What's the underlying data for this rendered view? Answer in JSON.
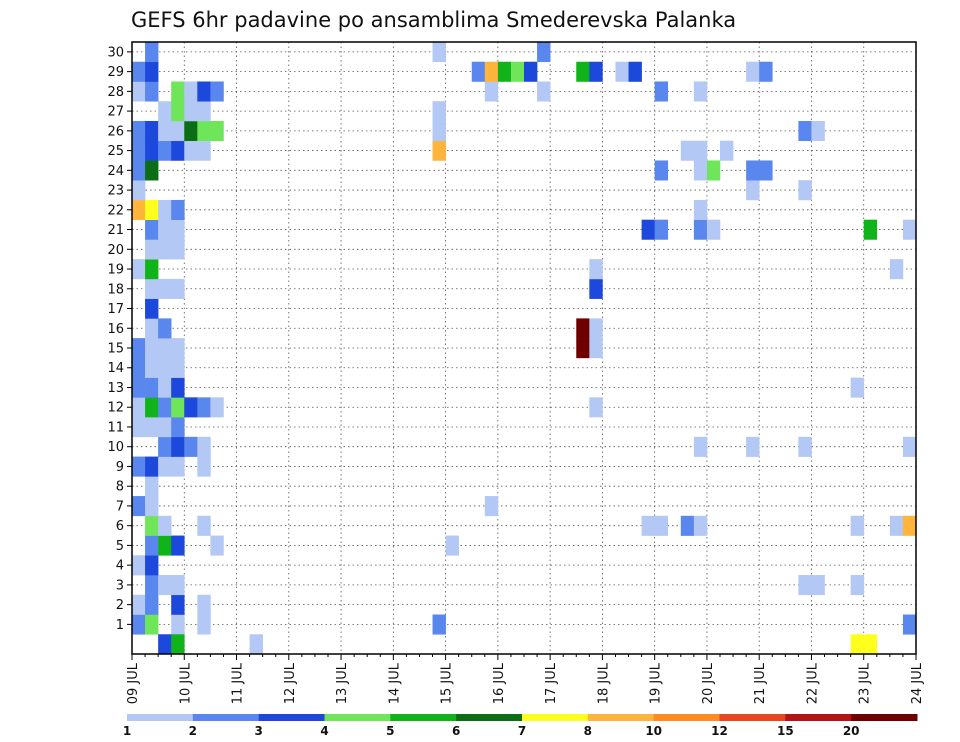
{
  "chart_data": {
    "type": "heatmap",
    "title": "GEFS 6hr padavine po ansamblima Smederevska Palanka",
    "xlabel": "",
    "ylabel": "",
    "x_start": "09 JUL",
    "x_ticks": [
      "09 JUL",
      "10 JUL",
      "11 JUL",
      "12 JUL",
      "13 JUL",
      "14 JUL",
      "15 JUL",
      "16 JUL",
      "17 JUL",
      "18 JUL",
      "19 JUL",
      "20 JUL",
      "21 JUL",
      "22 JUL",
      "23 JUL",
      "24 JUL"
    ],
    "y_ticks": [
      "1",
      "2",
      "3",
      "4",
      "5",
      "6",
      "7",
      "8",
      "9",
      "10",
      "11",
      "12",
      "13",
      "14",
      "15",
      "16",
      "17",
      "18",
      "19",
      "20",
      "21",
      "22",
      "23",
      "24",
      "25",
      "26",
      "27",
      "28",
      "29",
      "30"
    ],
    "ylim": [
      0,
      30
    ],
    "steps_per_day": 4,
    "grid": true,
    "colorbar": {
      "placement": "bottom",
      "labels": [
        "1",
        "2",
        "3",
        "4",
        "5",
        "6",
        "7",
        "8",
        "10",
        "12",
        "15",
        "20"
      ],
      "colors": [
        "#b4c8f5",
        "#5a87ee",
        "#1d48dc",
        "#6fe65a",
        "#10b41a",
        "#0b6e14",
        "#ffff1e",
        "#ffb43c",
        "#ff8c1e",
        "#e8461e",
        "#b41414",
        "#6e0000"
      ]
    },
    "cells": [
      [
        0,
        1,
        2
      ],
      [
        1,
        1,
        4
      ],
      [
        3,
        1,
        1
      ],
      [
        5,
        1,
        1
      ],
      [
        23,
        1,
        2
      ],
      [
        59,
        1,
        2
      ],
      [
        0,
        2,
        1
      ],
      [
        1,
        2,
        2
      ],
      [
        3,
        2,
        3
      ],
      [
        5,
        2,
        1
      ],
      [
        1,
        3,
        2
      ],
      [
        2,
        3,
        1
      ],
      [
        3,
        3,
        1
      ],
      [
        51,
        3,
        1
      ],
      [
        52,
        3,
        1
      ],
      [
        55,
        3,
        1
      ],
      [
        0,
        4,
        1
      ],
      [
        1,
        4,
        3
      ],
      [
        1,
        5,
        2
      ],
      [
        2,
        5,
        5
      ],
      [
        3,
        5,
        3
      ],
      [
        6,
        5,
        1
      ],
      [
        24,
        5,
        1
      ],
      [
        1,
        6,
        4
      ],
      [
        2,
        6,
        1
      ],
      [
        5,
        6,
        1
      ],
      [
        39,
        6,
        1
      ],
      [
        40,
        6,
        1
      ],
      [
        42,
        6,
        2
      ],
      [
        43,
        6,
        1
      ],
      [
        55,
        6,
        1
      ],
      [
        58,
        6,
        1
      ],
      [
        59,
        6,
        8
      ],
      [
        0,
        7,
        2
      ],
      [
        1,
        7,
        1
      ],
      [
        27,
        7,
        1
      ],
      [
        1,
        8,
        1
      ],
      [
        0,
        9,
        2
      ],
      [
        1,
        9,
        3
      ],
      [
        2,
        9,
        1
      ],
      [
        3,
        9,
        1
      ],
      [
        5,
        9,
        1
      ],
      [
        2,
        10,
        2
      ],
      [
        3,
        10,
        3
      ],
      [
        4,
        10,
        2
      ],
      [
        5,
        10,
        1
      ],
      [
        43,
        10,
        1
      ],
      [
        47,
        10,
        1
      ],
      [
        51,
        10,
        1
      ],
      [
        59,
        10,
        1
      ],
      [
        0,
        11,
        1
      ],
      [
        1,
        11,
        1
      ],
      [
        2,
        11,
        1
      ],
      [
        3,
        11,
        2
      ],
      [
        0,
        12,
        1
      ],
      [
        1,
        12,
        5
      ],
      [
        2,
        12,
        2
      ],
      [
        3,
        12,
        4
      ],
      [
        4,
        12,
        3
      ],
      [
        5,
        12,
        2
      ],
      [
        6,
        12,
        1
      ],
      [
        35,
        12,
        1
      ],
      [
        0,
        13,
        2
      ],
      [
        1,
        13,
        2
      ],
      [
        2,
        13,
        1
      ],
      [
        3,
        13,
        3
      ],
      [
        55,
        13,
        1
      ],
      [
        0,
        14,
        2
      ],
      [
        1,
        14,
        1
      ],
      [
        2,
        14,
        1
      ],
      [
        3,
        14,
        1
      ],
      [
        0,
        15,
        2
      ],
      [
        1,
        15,
        1
      ],
      [
        2,
        15,
        1
      ],
      [
        3,
        15,
        1
      ],
      [
        34,
        15,
        12
      ],
      [
        35,
        15,
        1
      ],
      [
        1,
        16,
        1
      ],
      [
        2,
        16,
        2
      ],
      [
        34,
        16,
        12
      ],
      [
        35,
        16,
        1
      ],
      [
        1,
        17,
        3
      ],
      [
        1,
        18,
        1
      ],
      [
        2,
        18,
        1
      ],
      [
        3,
        18,
        1
      ],
      [
        35,
        18,
        3
      ],
      [
        0,
        19,
        1
      ],
      [
        1,
        19,
        5
      ],
      [
        35,
        19,
        1
      ],
      [
        58,
        19,
        1
      ],
      [
        1,
        20,
        1
      ],
      [
        2,
        20,
        1
      ],
      [
        3,
        20,
        1
      ],
      [
        1,
        21,
        2
      ],
      [
        2,
        21,
        1
      ],
      [
        3,
        21,
        1
      ],
      [
        39,
        21,
        3
      ],
      [
        40,
        21,
        2
      ],
      [
        43,
        21,
        2
      ],
      [
        44,
        21,
        1
      ],
      [
        56,
        21,
        5
      ],
      [
        59,
        21,
        1
      ],
      [
        0,
        22,
        8
      ],
      [
        1,
        22,
        7
      ],
      [
        2,
        22,
        1
      ],
      [
        3,
        22,
        2
      ],
      [
        43,
        22,
        1
      ],
      [
        0,
        23,
        1
      ],
      [
        47,
        23,
        1
      ],
      [
        51,
        23,
        1
      ],
      [
        0,
        24,
        2
      ],
      [
        1,
        24,
        6
      ],
      [
        40,
        24,
        2
      ],
      [
        43,
        24,
        1
      ],
      [
        44,
        24,
        4
      ],
      [
        47,
        24,
        2
      ],
      [
        48,
        24,
        2
      ],
      [
        0,
        25,
        2
      ],
      [
        1,
        25,
        3
      ],
      [
        2,
        25,
        2
      ],
      [
        3,
        25,
        3
      ],
      [
        4,
        25,
        1
      ],
      [
        5,
        25,
        1
      ],
      [
        23,
        25,
        8
      ],
      [
        42,
        25,
        1
      ],
      [
        43,
        25,
        1
      ],
      [
        45,
        25,
        1
      ],
      [
        0,
        26,
        2
      ],
      [
        1,
        26,
        3
      ],
      [
        2,
        26,
        1
      ],
      [
        3,
        26,
        1
      ],
      [
        4,
        26,
        6
      ],
      [
        5,
        26,
        4
      ],
      [
        6,
        26,
        4
      ],
      [
        23,
        26,
        1
      ],
      [
        51,
        26,
        2
      ],
      [
        52,
        26,
        1
      ],
      [
        2,
        27,
        1
      ],
      [
        3,
        27,
        4
      ],
      [
        4,
        27,
        1
      ],
      [
        5,
        27,
        1
      ],
      [
        23,
        27,
        1
      ],
      [
        0,
        28,
        1
      ],
      [
        1,
        28,
        2
      ],
      [
        3,
        28,
        4
      ],
      [
        4,
        28,
        1
      ],
      [
        5,
        28,
        3
      ],
      [
        6,
        28,
        2
      ],
      [
        27,
        28,
        1
      ],
      [
        31,
        28,
        1
      ],
      [
        40,
        28,
        2
      ],
      [
        43,
        28,
        1
      ],
      [
        0,
        29,
        2
      ],
      [
        1,
        29,
        3
      ],
      [
        26,
        29,
        2
      ],
      [
        27,
        29,
        8
      ],
      [
        28,
        29,
        5
      ],
      [
        29,
        29,
        4
      ],
      [
        30,
        29,
        3
      ],
      [
        34,
        29,
        5
      ],
      [
        35,
        29,
        3
      ],
      [
        37,
        29,
        1
      ],
      [
        38,
        29,
        3
      ],
      [
        47,
        29,
        1
      ],
      [
        48,
        29,
        2
      ],
      [
        1,
        30,
        2
      ],
      [
        23,
        30,
        1
      ],
      [
        31,
        30,
        2
      ],
      [
        2,
        0,
        3
      ],
      [
        3,
        0,
        5
      ],
      [
        9,
        0,
        1
      ],
      [
        55,
        0,
        7
      ],
      [
        56,
        0,
        7
      ]
    ]
  }
}
